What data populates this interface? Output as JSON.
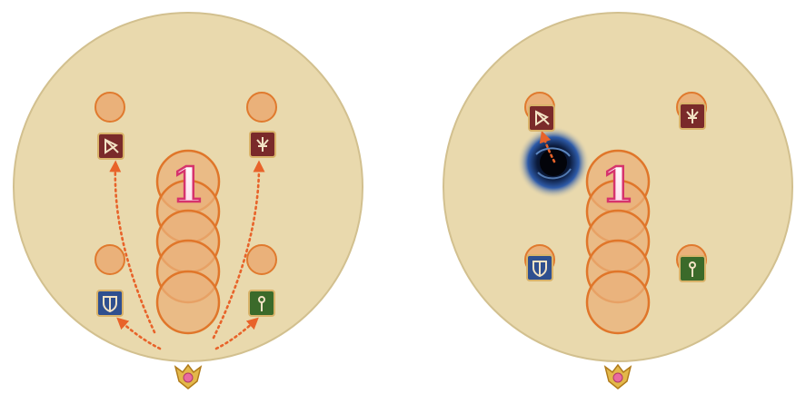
{
  "diagrams": [
    {
      "id": "left",
      "label": "",
      "number_marker": "1",
      "orb_count": 5,
      "has_portal": false,
      "roles": [
        {
          "role": "ranged-dps",
          "icon": "bow-icon",
          "color": "#7a2a2a"
        },
        {
          "role": "melee-dps",
          "icon": "blade-icon",
          "color": "#7a2a2a"
        },
        {
          "role": "tank",
          "icon": "shield-icon",
          "color": "#2f4f8f"
        },
        {
          "role": "healer",
          "icon": "staff-icon",
          "color": "#3b6a2a"
        }
      ],
      "arrows": 4
    },
    {
      "id": "right",
      "label": "",
      "number_marker": "1",
      "orb_count": 5,
      "has_portal": true,
      "roles": [
        {
          "role": "ranged-dps",
          "icon": "bow-icon",
          "color": "#7a2a2a"
        },
        {
          "role": "melee-dps",
          "icon": "blade-icon",
          "color": "#7a2a2a"
        },
        {
          "role": "tank",
          "icon": "shield-icon",
          "color": "#2f4f8f"
        },
        {
          "role": "healer",
          "icon": "staff-icon",
          "color": "#3b6a2a"
        }
      ],
      "arrows": 1
    }
  ],
  "colors": {
    "arena": "#e9d9ad",
    "arena_edge": "#cdbb8a",
    "orb_fill": "#eab17a",
    "orb_stroke": "#e07a2e",
    "arrow": "#e8632a"
  }
}
